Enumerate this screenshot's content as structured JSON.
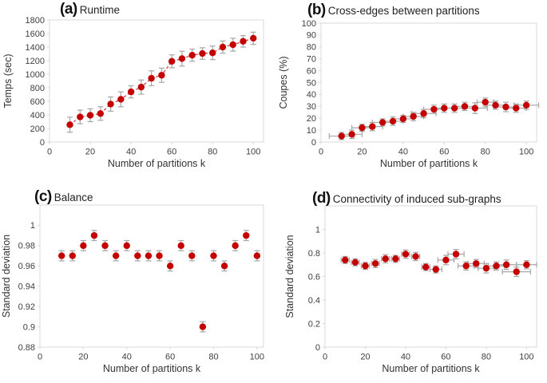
{
  "colors": {
    "background": "#ffffff",
    "point": "#c40000",
    "error_bar": "#a6a6a6",
    "trend_line": "#cc2222",
    "plot_border": "#d9d9d9",
    "tick_text": "#3f3f3f",
    "axis_title_text": "#333333",
    "panel_title_text": "#111111"
  },
  "chart_data": [
    {
      "id": "a",
      "panel_label": "(a)",
      "title": "Runtime",
      "type": "scatter",
      "xlabel": "Number of partitions k",
      "ylabel": "Temps (sec)",
      "xlim": [
        0,
        105
      ],
      "ylim": [
        0,
        1800
      ],
      "xticks": [
        0,
        20,
        40,
        60,
        80,
        100
      ],
      "yticks": [
        0,
        200,
        400,
        600,
        800,
        1000,
        1200,
        1400,
        1600,
        1800
      ],
      "grid": false,
      "legend": null,
      "trend_line": true,
      "x": [
        10,
        15,
        20,
        25,
        30,
        35,
        40,
        45,
        50,
        55,
        60,
        65,
        70,
        75,
        80,
        85,
        90,
        95,
        100
      ],
      "y": [
        255,
        370,
        395,
        420,
        560,
        630,
        740,
        810,
        940,
        985,
        1190,
        1230,
        1280,
        1305,
        1315,
        1400,
        1435,
        1485,
        1530
      ],
      "yerr": [
        110,
        100,
        95,
        100,
        105,
        110,
        90,
        105,
        110,
        105,
        95,
        110,
        90,
        85,
        100,
        90,
        95,
        85,
        90
      ],
      "xerr": 0
    },
    {
      "id": "b",
      "panel_label": "(b)",
      "title": "Cross-edges between partitions",
      "type": "scatter",
      "xlabel": "Number of partitions k",
      "ylabel": "Coupes (%)",
      "xlim": [
        0,
        105
      ],
      "ylim": [
        0,
        100
      ],
      "xticks": [
        0,
        20,
        40,
        60,
        80,
        100
      ],
      "yticks": [
        0,
        10,
        20,
        30,
        40,
        50,
        60,
        70,
        80,
        90,
        100
      ],
      "grid": false,
      "legend": null,
      "trend_line": false,
      "x": [
        10,
        15,
        20,
        25,
        30,
        35,
        40,
        45,
        50,
        55,
        60,
        65,
        70,
        75,
        80,
        85,
        90,
        95,
        100
      ],
      "y": [
        5,
        6.5,
        12,
        13,
        16.5,
        17.5,
        19.5,
        21.5,
        24,
        27.5,
        28.5,
        28.5,
        30,
        28.5,
        33.5,
        31,
        29.5,
        28.5,
        31
      ],
      "yerr": [
        3,
        3.5,
        3,
        3.5,
        3,
        3.5,
        3,
        3.5,
        3.5,
        3.5,
        3.5,
        3.5,
        3.5,
        4.5,
        3.5,
        3.5,
        4,
        3.5,
        3.5
      ],
      "xerr": [
        6,
        5,
        5,
        5,
        5,
        5,
        5,
        5,
        6,
        5,
        5,
        5,
        5,
        6,
        4,
        5,
        6,
        5,
        6
      ]
    },
    {
      "id": "c",
      "panel_label": "(c)",
      "title": "Balance",
      "type": "scatter",
      "xlabel": "Number of partitions k",
      "ylabel": "Standard deviation",
      "xlim": [
        0,
        103
      ],
      "ylim": [
        0.88,
        1.02
      ],
      "xticks": [
        0,
        20,
        40,
        60,
        80,
        100
      ],
      "yticks": [
        0.88,
        0.9,
        0.92,
        0.94,
        0.96,
        0.98,
        1
      ],
      "grid": false,
      "legend": null,
      "trend_line": false,
      "x": [
        10,
        15,
        20,
        25,
        30,
        35,
        40,
        45,
        50,
        55,
        60,
        65,
        70,
        75,
        80,
        85,
        90,
        95,
        100
      ],
      "y": [
        0.97,
        0.97,
        0.98,
        0.99,
        0.98,
        0.97,
        0.98,
        0.97,
        0.97,
        0.97,
        0.96,
        0.98,
        0.97,
        0.9,
        0.97,
        0.96,
        0.98,
        0.99,
        0.97
      ],
      "yerr": 0.005,
      "xerr": 0
    },
    {
      "id": "d",
      "panel_label": "(d)",
      "title": "Connectivity of induced sub-graphs",
      "type": "scatter",
      "xlabel": "Number of partitions k",
      "ylabel": "Standard deviation",
      "xlim": [
        0,
        105
      ],
      "ylim": [
        0,
        1.2
      ],
      "xticks": [
        0,
        20,
        40,
        60,
        80,
        100
      ],
      "yticks": [
        0,
        0.2,
        0.4,
        0.6,
        0.8,
        1
      ],
      "grid": false,
      "legend": null,
      "trend_line": false,
      "x": [
        10,
        15,
        20,
        25,
        30,
        35,
        40,
        45,
        50,
        55,
        60,
        65,
        70,
        75,
        80,
        85,
        90,
        95,
        100
      ],
      "y": [
        0.74,
        0.72,
        0.69,
        0.71,
        0.75,
        0.75,
        0.79,
        0.77,
        0.68,
        0.66,
        0.74,
        0.79,
        0.69,
        0.71,
        0.67,
        0.69,
        0.7,
        0.64,
        0.7
      ],
      "yerr": [
        0.03,
        0.03,
        0.03,
        0.035,
        0.035,
        0.03,
        0.035,
        0.035,
        0.03,
        0.03,
        0.04,
        0.04,
        0.035,
        0.035,
        0.04,
        0.035,
        0.04,
        0.04,
        0.035
      ],
      "xerr": [
        2,
        2,
        2,
        2,
        2,
        2,
        2,
        2,
        2,
        3,
        4,
        4,
        4,
        4,
        4,
        4,
        5,
        7,
        5
      ]
    }
  ]
}
